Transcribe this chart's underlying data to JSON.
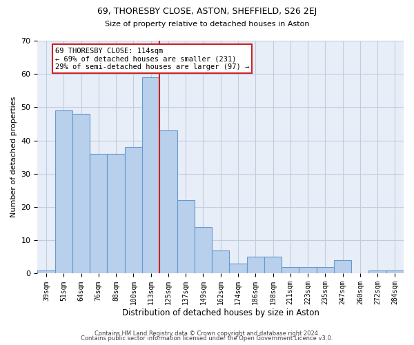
{
  "title1": "69, THORESBY CLOSE, ASTON, SHEFFIELD, S26 2EJ",
  "title2": "Size of property relative to detached houses in Aston",
  "xlabel": "Distribution of detached houses by size in Aston",
  "ylabel": "Number of detached properties",
  "categories": [
    "39sqm",
    "51sqm",
    "64sqm",
    "76sqm",
    "88sqm",
    "100sqm",
    "113sqm",
    "125sqm",
    "137sqm",
    "149sqm",
    "162sqm",
    "174sqm",
    "186sqm",
    "198sqm",
    "211sqm",
    "223sqm",
    "235sqm",
    "247sqm",
    "260sqm",
    "272sqm",
    "284sqm"
  ],
  "values": [
    1,
    49,
    48,
    36,
    36,
    38,
    59,
    43,
    22,
    14,
    7,
    3,
    5,
    5,
    2,
    2,
    2,
    4,
    0,
    1,
    1
  ],
  "bar_color": "#b8d0ec",
  "bar_edge_color": "#6699cc",
  "vline_color": "#cc2222",
  "vline_x_index": 6,
  "annotation_text": "69 THORESBY CLOSE: 114sqm\n← 69% of detached houses are smaller (231)\n29% of semi-detached houses are larger (97) →",
  "annotation_box_color": "#ffffff",
  "annotation_box_edge": "#cc2222",
  "ylim": [
    0,
    70
  ],
  "yticks": [
    0,
    10,
    20,
    30,
    40,
    50,
    60,
    70
  ],
  "footer1": "Contains HM Land Registry data © Crown copyright and database right 2024.",
  "footer2": "Contains public sector information licensed under the Open Government Licence v3.0.",
  "bg_color": "#e8eef8",
  "grid_color": "#c0cce0"
}
